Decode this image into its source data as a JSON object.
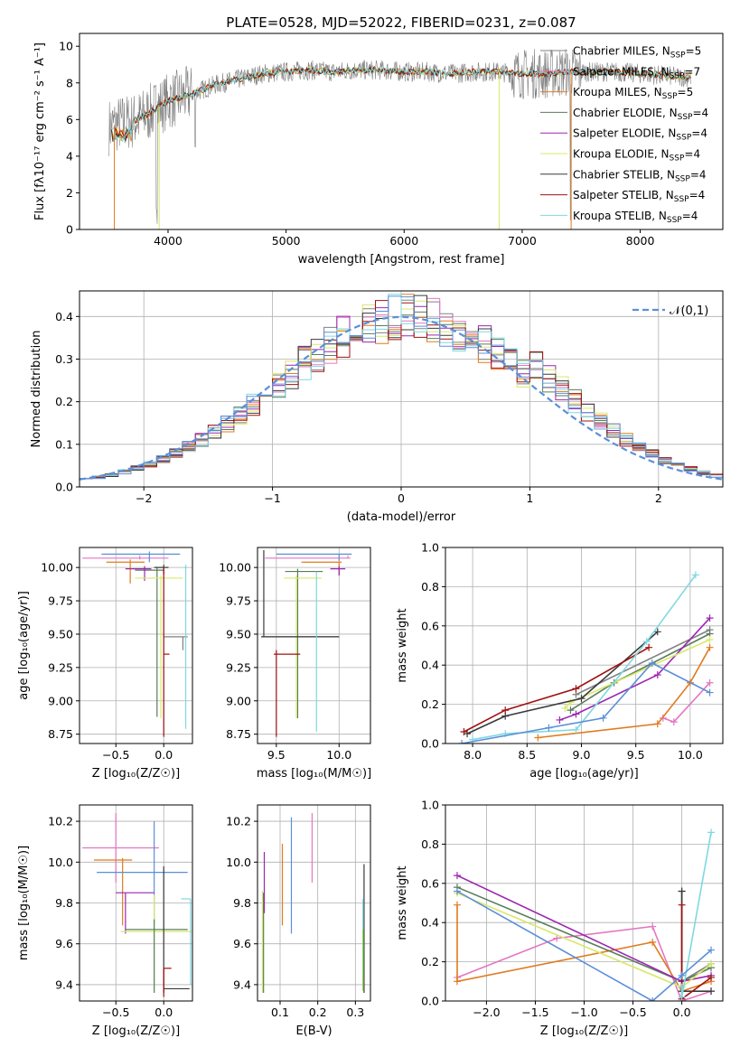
{
  "figure": {
    "title": "PLATE=0528, MJD=52022, FIBERID=0231, z=0.087"
  },
  "colors": {
    "chabrier_miles": "#808080",
    "salpeter_miles": "#e377c2",
    "kroupa_miles": "#e07b1f",
    "chabrier_elodie": "#5a7d5a",
    "salpeter_elodie": "#9b27b0",
    "kroupa_elodie": "#d8e86a",
    "chabrier_stelib": "#3a3a3a",
    "salpeter_stelib": "#a01010",
    "kroupa_stelib": "#7fd8e0",
    "blue": "#5b8fd9",
    "green": "#8dd84a",
    "normal": "#5b8fd9",
    "grid": "#b0b0b0"
  },
  "chart_data": [
    {
      "id": "spectrum",
      "type": "line",
      "title": "PLATE=0528, MJD=52022, FIBERID=0231, z=0.087",
      "xlabel": "wavelength [Angstrom, rest frame]",
      "ylabel": "Flux [fλ10⁻¹⁷ erg cm⁻² s⁻¹ A⁻¹]",
      "xlim": [
        3250,
        8700
      ],
      "ylim": [
        0,
        10.7
      ],
      "xticks": [
        4000,
        5000,
        6000,
        7000,
        8000
      ],
      "yticks": [
        0,
        2,
        4,
        6,
        8,
        10
      ],
      "grid": false,
      "legend_position": "top-right",
      "legend": [
        "Chabrier MILES, N_SSP=5",
        "Salpeter MILES, N_SSP=7",
        "Kroupa MILES, N_SSP=5",
        "Chabrier ELODIE, N_SSP=4",
        "Salpeter ELODIE, N_SSP=4",
        "Kroupa ELODIE, N_SSP=4",
        "Chabrier STELIB, N_SSP=4",
        "Salpeter STELIB, N_SSP=4",
        "Kroupa STELIB, N_SSP=4"
      ],
      "data_x": [
        3500,
        3600,
        3700,
        3800,
        3900,
        4000,
        4200,
        4400,
        4600,
        4800,
        5000,
        5200,
        5400,
        5600,
        5800,
        6000,
        6200,
        6400,
        6600,
        6800,
        7000,
        7200,
        7400,
        7600,
        7800,
        8000,
        8200,
        8400
      ],
      "data_y": [
        5.6,
        5.8,
        5.9,
        6.2,
        6.6,
        7.0,
        7.4,
        7.9,
        8.2,
        8.5,
        8.6,
        8.7,
        8.6,
        8.7,
        8.7,
        8.6,
        8.6,
        8.5,
        8.6,
        8.6,
        8.5,
        8.5,
        8.6,
        8.6,
        8.6,
        8.5,
        8.4,
        8.3
      ]
    },
    {
      "id": "residuals",
      "type": "line",
      "xlabel": "(data-model)/error",
      "ylabel": "Normed distribution",
      "xlim": [
        -2.5,
        2.5
      ],
      "ylim": [
        0,
        0.46
      ],
      "xticks": [
        -2,
        -1,
        0,
        1,
        2
      ],
      "yticks": [
        0.0,
        0.1,
        0.2,
        0.3,
        0.4
      ],
      "grid": true,
      "legend_position": "top-right",
      "legend": [
        "𝒩(0,1)"
      ]
    },
    {
      "id": "age_vs_z",
      "type": "scatter",
      "xlabel": "Z [log₁₀(Z/Z☉)]",
      "ylabel": "age  [log₁₀(age/yr)]",
      "xlim": [
        -0.88,
        0.3
      ],
      "ylim": [
        8.68,
        10.15
      ],
      "xticks": [
        -0.5,
        0.0
      ],
      "yticks": [
        8.75,
        9.0,
        9.25,
        9.5,
        9.75,
        10.0
      ],
      "grid": true,
      "series": [
        {
          "key": "chabrier_miles",
          "x": 0.2,
          "y": 9.48,
          "xerr": [
            0.2,
            0.05
          ],
          "yerr": [
            0.1,
            0.0
          ]
        },
        {
          "key": "salpeter_miles",
          "x": -0.25,
          "y": 10.07,
          "xerr": [
            0.6,
            0.3
          ],
          "yerr": [
            0.01,
            0.02
          ]
        },
        {
          "key": "kroupa_miles",
          "x": -0.35,
          "y": 10.04,
          "xerr": [
            0.25,
            0.15
          ],
          "yerr": [
            0.16,
            0.02
          ]
        },
        {
          "key": "chabrier_elodie",
          "x": -0.07,
          "y": 9.98,
          "xerr": [
            0.23,
            0.07
          ],
          "yerr": [
            1.1,
            0.02
          ]
        },
        {
          "key": "salpeter_elodie",
          "x": -0.2,
          "y": 9.99,
          "xerr": [
            0.2,
            0.07
          ],
          "yerr": [
            0.09,
            0.02
          ]
        },
        {
          "key": "kroupa_elodie",
          "x": -0.03,
          "y": 9.92,
          "xerr": [
            0.27,
            0.23
          ],
          "yerr": [
            1.05,
            0.02
          ]
        },
        {
          "key": "chabrier_stelib",
          "x": 0.0,
          "y": 10.0,
          "xerr": [
            0.1,
            0.05
          ],
          "yerr": [
            0.05,
            0.02
          ]
        },
        {
          "key": "salpeter_stelib",
          "x": 0.0,
          "y": 9.35,
          "xerr": [
            0.0,
            0.06
          ],
          "yerr": [
            0.62,
            0.65
          ]
        },
        {
          "key": "kroupa_stelib",
          "x": 0.23,
          "y": 10.0,
          "xerr": [
            0.02,
            0.01
          ],
          "yerr": [
            1.21,
            0.02
          ]
        },
        {
          "key": "blue",
          "x": -0.15,
          "y": 10.1,
          "xerr": [
            0.5,
            0.32
          ],
          "yerr": [
            0.06,
            0.02
          ]
        }
      ]
    },
    {
      "id": "age_vs_mass",
      "type": "scatter",
      "xlabel": "mass [log₁₀(M/M☉)]",
      "ylabel": "",
      "xlim": [
        9.35,
        10.25
      ],
      "ylim": [
        8.68,
        10.15
      ],
      "xticks": [
        9.5,
        10.0
      ],
      "yticks": [
        8.75,
        9.0,
        9.25,
        9.5,
        9.75,
        10.0
      ],
      "grid": true,
      "series": [
        {
          "key": "chabrier_miles",
          "x": 9.82,
          "y": 9.48,
          "xerr": [
            0.44,
            0.18
          ],
          "yerr": [
            0.0,
            0.0
          ]
        },
        {
          "key": "salpeter_miles",
          "x": 10.07,
          "y": 10.07,
          "xerr": [
            0.66,
            0.02
          ],
          "yerr": [
            0.0,
            0.02
          ]
        },
        {
          "key": "kroupa_miles",
          "x": 10.0,
          "y": 10.04,
          "xerr": [
            0.3,
            0.02
          ],
          "yerr": [
            0.1,
            0.0
          ]
        },
        {
          "key": "chabrier_elodie",
          "x": 9.67,
          "y": 9.97,
          "xerr": [
            0.1,
            0.2
          ],
          "yerr": [
            1.1,
            0.02
          ]
        },
        {
          "key": "salpeter_elodie",
          "x": 10.0,
          "y": 9.99,
          "xerr": [
            0.07,
            0.05
          ],
          "yerr": [
            0.05,
            0.02
          ]
        },
        {
          "key": "kroupa_elodie",
          "x": 9.66,
          "y": 9.92,
          "xerr": [
            0.1,
            0.2
          ],
          "yerr": [
            1.05,
            0.02
          ]
        },
        {
          "key": "chabrier_stelib",
          "x": 9.4,
          "y": 9.48,
          "xerr": [
            0.02,
            0.6
          ],
          "yerr": [
            0.0,
            0.65
          ]
        },
        {
          "key": "salpeter_stelib",
          "x": 9.5,
          "y": 9.35,
          "xerr": [
            0.02,
            0.19
          ],
          "yerr": [
            0.62,
            0.03
          ]
        },
        {
          "key": "kroupa_stelib",
          "x": 9.82,
          "y": 9.97,
          "xerr": [
            0.0,
            0.0
          ],
          "yerr": [
            1.2,
            0.0
          ]
        },
        {
          "key": "blue",
          "x": 10.0,
          "y": 10.1,
          "xerr": [
            0.5,
            0.1
          ],
          "yerr": [
            0.05,
            0.0
          ]
        }
      ]
    },
    {
      "id": "weight_vs_age",
      "type": "line",
      "xlabel": "age  [log₁₀(age/yr)]",
      "ylabel": "mass weight",
      "xlim": [
        7.75,
        10.3
      ],
      "ylim": [
        0,
        1.0
      ],
      "xticks": [
        8.0,
        8.5,
        9.0,
        9.5,
        10.0
      ],
      "yticks": [
        0.0,
        0.2,
        0.4,
        0.6,
        0.8,
        1.0
      ],
      "grid": true,
      "series": [
        {
          "key": "chabrier_miles",
          "x": [
            8.95,
            10.18
          ],
          "y": [
            0.25,
            0.58
          ]
        },
        {
          "key": "salpeter_miles",
          "x": [
            9.75,
            9.85,
            10.18
          ],
          "y": [
            0.13,
            0.11,
            0.31
          ]
        },
        {
          "key": "kroupa_miles",
          "x": [
            8.6,
            9.7,
            10.0,
            10.18
          ],
          "y": [
            0.03,
            0.1,
            0.31,
            0.49
          ]
        },
        {
          "key": "chabrier_elodie",
          "x": [
            8.9,
            9.3,
            10.18
          ],
          "y": [
            0.17,
            0.31,
            0.56
          ]
        },
        {
          "key": "salpeter_elodie",
          "x": [
            8.8,
            8.95,
            9.7,
            10.18
          ],
          "y": [
            0.12,
            0.15,
            0.35,
            0.64
          ]
        },
        {
          "key": "kroupa_elodie",
          "x": [
            8.85,
            8.9,
            10.18
          ],
          "y": [
            0.18,
            0.21,
            0.53
          ]
        },
        {
          "key": "chabrier_stelib",
          "x": [
            7.95,
            8.3,
            9.0,
            9.7
          ],
          "y": [
            0.05,
            0.14,
            0.23,
            0.57
          ]
        },
        {
          "key": "salpeter_stelib",
          "x": [
            7.92,
            8.3,
            8.95,
            9.62
          ],
          "y": [
            0.06,
            0.17,
            0.28,
            0.49
          ]
        },
        {
          "key": "kroupa_stelib",
          "x": [
            8.0,
            8.3,
            8.95,
            9.6,
            10.05
          ],
          "y": [
            0.02,
            0.05,
            0.07,
            0.52,
            0.86
          ]
        },
        {
          "key": "blue",
          "x": [
            7.9,
            8.7,
            9.2,
            9.65,
            10.18
          ],
          "y": [
            0.0,
            0.08,
            0.13,
            0.41,
            0.26
          ]
        }
      ]
    },
    {
      "id": "mass_vs_z",
      "type": "scatter",
      "xlabel": "Z [log₁₀(Z/Z☉)]",
      "ylabel": "mass [log₁₀(M/M☉)]",
      "xlim": [
        -0.88,
        0.3
      ],
      "ylim": [
        9.32,
        10.28
      ],
      "xticks": [
        -0.5,
        0.0
      ],
      "yticks": [
        9.4,
        9.6,
        9.8,
        10.0,
        10.2
      ],
      "grid": true,
      "series": [
        {
          "key": "salpeter_miles",
          "x": -0.5,
          "y": 10.07,
          "xerr": [
            0.35,
            0.45
          ],
          "yerr": [
            0.17,
            0.17
          ]
        },
        {
          "key": "kroupa_miles",
          "x": -0.43,
          "y": 10.01,
          "xerr": [
            0.3,
            0.1
          ],
          "yerr": [
            0.32,
            0.01
          ]
        },
        {
          "key": "blue",
          "x": -0.1,
          "y": 9.95,
          "xerr": [
            0.6,
            0.35
          ],
          "yerr": [
            0.25,
            0.25
          ]
        },
        {
          "key": "salpeter_elodie",
          "x": -0.4,
          "y": 9.85,
          "xerr": [
            0.1,
            0.3
          ],
          "yerr": [
            0.2,
            0.0
          ]
        },
        {
          "key": "kroupa_elodie",
          "x": -0.1,
          "y": 9.66,
          "xerr": [
            0.35,
            0.4
          ],
          "yerr": [
            0.3,
            0.18
          ]
        },
        {
          "key": "chabrier_elodie",
          "x": -0.1,
          "y": 9.67,
          "xerr": [
            0.3,
            0.35
          ],
          "yerr": [
            0.31,
            0.05
          ]
        },
        {
          "key": "chabrier_stelib",
          "x": 0.0,
          "y": 9.38,
          "xerr": [
            0.0,
            0.27
          ],
          "yerr": [
            0.02,
            0.6
          ]
        },
        {
          "key": "salpeter_stelib",
          "x": 0.0,
          "y": 9.48,
          "xerr": [
            0.0,
            0.08
          ],
          "yerr": [
            0.14,
            0.0
          ]
        },
        {
          "key": "kroupa_stelib",
          "x": 0.28,
          "y": 9.82,
          "xerr": [
            0.1,
            0.0
          ],
          "yerr": [
            0.42,
            0.0
          ]
        }
      ]
    },
    {
      "id": "mass_vs_ebv",
      "type": "scatter",
      "xlabel": "E(B-V)",
      "ylabel": "",
      "xlim": [
        0.04,
        0.34
      ],
      "ylim": [
        9.32,
        10.28
      ],
      "xticks": [
        0.1,
        0.2,
        0.3
      ],
      "yticks": [
        9.4,
        9.6,
        9.8,
        10.0,
        10.2
      ],
      "grid": true,
      "series": [
        {
          "key": "kroupa_elodie",
          "x": 0.053,
          "y": 9.66,
          "yerr": [
            0.3,
            0.2
          ]
        },
        {
          "key": "chabrier_elodie",
          "x": 0.056,
          "y": 9.67,
          "yerr": [
            0.31,
            0.18
          ]
        },
        {
          "key": "salpeter_elodie",
          "x": 0.058,
          "y": 9.85,
          "yerr": [
            0.1,
            0.2
          ]
        },
        {
          "key": "kroupa_miles",
          "x": 0.106,
          "y": 10.01,
          "yerr": [
            0.32,
            0.08
          ]
        },
        {
          "key": "blue",
          "x": 0.13,
          "y": 9.95,
          "yerr": [
            0.3,
            0.27
          ]
        },
        {
          "key": "salpeter_miles",
          "x": 0.185,
          "y": 10.07,
          "yerr": [
            0.17,
            0.17
          ]
        },
        {
          "key": "chabrier_stelib",
          "x": 0.323,
          "y": 9.38,
          "yerr": [
            0.02,
            0.61
          ]
        },
        {
          "key": "kroupa_stelib",
          "x": 0.32,
          "y": 9.82,
          "yerr": [
            0.42,
            0.0
          ]
        },
        {
          "key": "green",
          "x": 0.32,
          "y": 9.47,
          "yerr": [
            0.1,
            0.2
          ]
        }
      ]
    },
    {
      "id": "weight_vs_z",
      "type": "line",
      "xlabel": "Z [log₁₀(Z/Z☉)]",
      "ylabel": "mass weight",
      "xlim": [
        -2.42,
        0.42
      ],
      "ylim": [
        0,
        1.0
      ],
      "xticks": [
        -2.0,
        -1.5,
        -1.0,
        -0.5,
        0.0
      ],
      "yticks": [
        0.0,
        0.2,
        0.4,
        0.6,
        0.8,
        1.0
      ],
      "grid": true,
      "series": [
        {
          "key": "chabrier_miles",
          "x": [
            0.0,
            0.0,
            0.3
          ],
          "y": [
            0.56,
            0.1,
            0.19
          ]
        },
        {
          "key": "salpeter_miles",
          "x": [
            -2.3,
            -1.28,
            -0.3,
            0.0,
            0.3
          ],
          "y": [
            0.12,
            0.32,
            0.38,
            0.0,
            0.05
          ]
        },
        {
          "key": "kroupa_miles",
          "x": [
            -2.3,
            -2.3,
            -0.3,
            0.0,
            0.3
          ],
          "y": [
            0.49,
            0.1,
            0.3,
            0.05,
            0.1
          ]
        },
        {
          "key": "chabrier_elodie",
          "x": [
            -2.3,
            0.0,
            0.3
          ],
          "y": [
            0.58,
            0.1,
            0.17
          ]
        },
        {
          "key": "salpeter_elodie",
          "x": [
            -2.3,
            0.0,
            0.3
          ],
          "y": [
            0.64,
            0.1,
            0.13
          ]
        },
        {
          "key": "kroupa_elodie",
          "x": [
            -2.3,
            0.0,
            0.3
          ],
          "y": [
            0.55,
            0.07,
            0.19
          ]
        },
        {
          "key": "chabrier_stelib",
          "x": [
            0.0,
            0.0,
            0.3
          ],
          "y": [
            0.56,
            0.05,
            0.05
          ]
        },
        {
          "key": "salpeter_stelib",
          "x": [
            0.0,
            0.0,
            0.3
          ],
          "y": [
            0.49,
            0.01,
            0.12
          ]
        },
        {
          "key": "kroupa_stelib",
          "x": [
            0.0,
            0.0,
            0.3
          ],
          "y": [
            0.07,
            0.02,
            0.86
          ]
        },
        {
          "key": "blue",
          "x": [
            -2.3,
            -0.3,
            0.0,
            0.3
          ],
          "y": [
            0.56,
            0.0,
            0.13,
            0.26
          ]
        }
      ]
    }
  ]
}
